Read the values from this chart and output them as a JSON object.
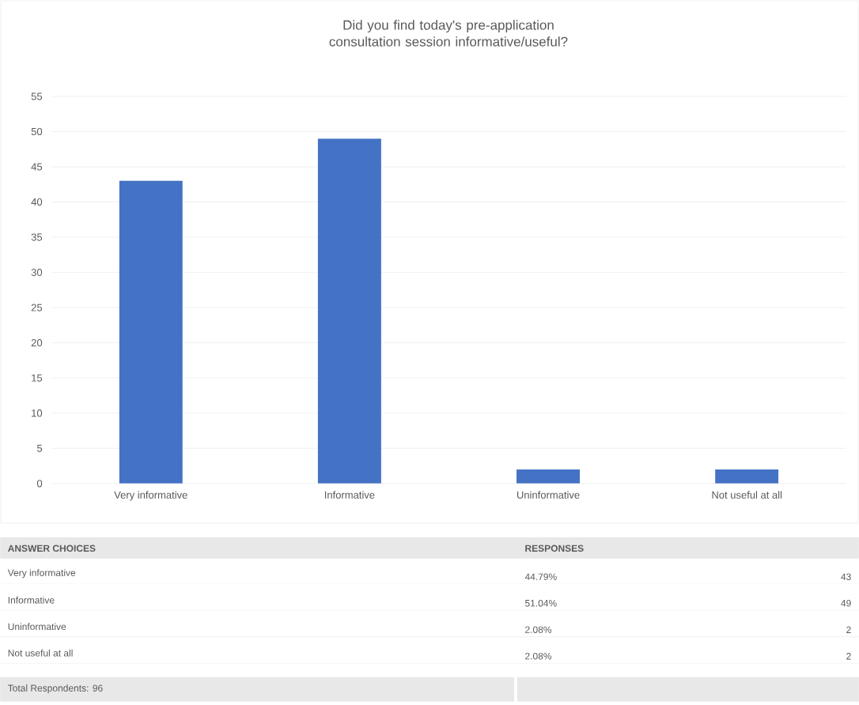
{
  "chart_data": {
    "type": "bar",
    "title": "Did you find today's pre-application consultation session informative/useful?",
    "categories": [
      "Very informative",
      "Informative",
      "Uninformative",
      "Not useful at all"
    ],
    "values": [
      43,
      49,
      2,
      2
    ],
    "color": "#4472c4",
    "ylim": [
      0,
      55
    ],
    "yticks": [
      0,
      5,
      10,
      15,
      20,
      25,
      30,
      35,
      40,
      45,
      50,
      55
    ],
    "grid": "y",
    "annotations": [
      "ANSWER CHOICES",
      "RESPONSES",
      "44.79%",
      "51.04%",
      "2.08%",
      "2.08%",
      "Total Respondents: 96",
      "43",
      "49",
      "2",
      "2"
    ]
  }
}
